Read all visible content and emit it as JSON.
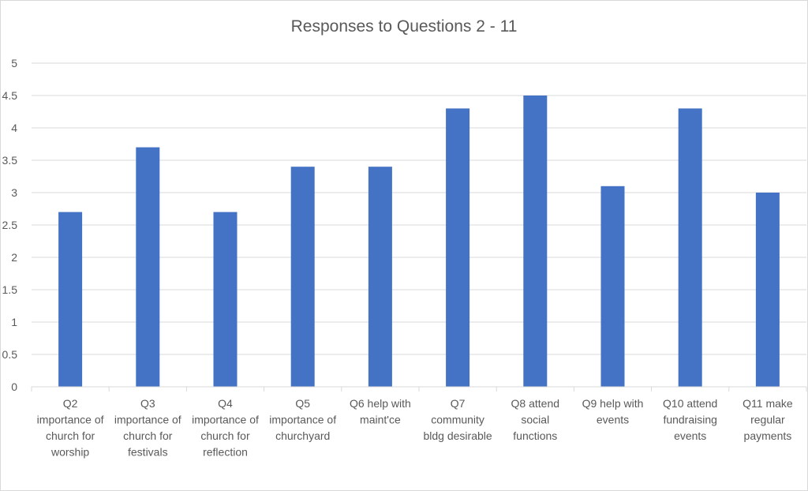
{
  "chart_data": {
    "type": "bar",
    "title": "Responses to Questions 2 - 11",
    "categories": [
      [
        "Q2",
        "importance of",
        "church for",
        "worship"
      ],
      [
        "Q3",
        "importance of",
        "church for",
        "festivals"
      ],
      [
        "Q4",
        "importance of",
        "church for",
        "reflection"
      ],
      [
        "Q5",
        "importance of",
        "churchyard"
      ],
      [
        "Q6 help with",
        "maint'ce"
      ],
      [
        "Q7",
        "community",
        "bldg desirable"
      ],
      [
        "Q8 attend",
        "social",
        "functions"
      ],
      [
        "Q9 help with",
        "events"
      ],
      [
        "Q10 attend",
        "fundraising",
        "events"
      ],
      [
        "Q11 make",
        "regular",
        "payments"
      ]
    ],
    "values": [
      2.7,
      3.7,
      2.7,
      3.4,
      3.4,
      4.3,
      4.5,
      3.1,
      4.3,
      3.0
    ],
    "ylim": [
      0,
      5
    ],
    "yticks": [
      "0",
      "0.5",
      "1",
      "1.5",
      "2",
      "2.5",
      "3",
      "3.5",
      "4",
      "4.5",
      "5"
    ],
    "grid": true,
    "legend": "none",
    "bar_color": "#4472c4",
    "grid_color": "#d9d9d9"
  }
}
